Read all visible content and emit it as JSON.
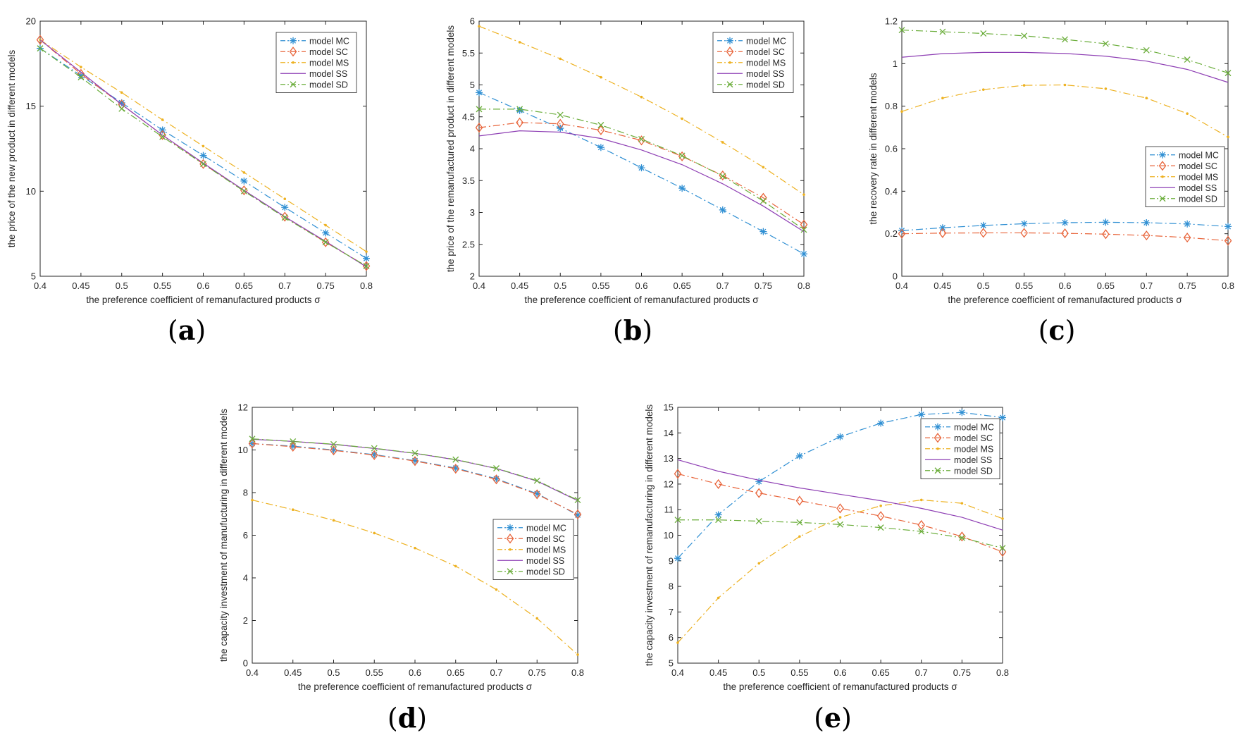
{
  "figure": {
    "panel_labels": [
      "(a)",
      "(b)",
      "(c)",
      "(d)",
      "(e)"
    ],
    "series_colors": {
      "model MC": "#2f8fd3",
      "model SC": "#e8643a",
      "model MS": "#edb120",
      "model SS": "#8e3fb4",
      "model SD": "#6aad3a"
    }
  },
  "chart_data": [
    {
      "type": "line",
      "panel": "(a)",
      "title": "",
      "xlabel": "the preference coefficient of remanufactured products σ",
      "ylabel": "the price of the new product in different models",
      "x": [
        0.4,
        0.45,
        0.5,
        0.55,
        0.6,
        0.65,
        0.7,
        0.75,
        0.8
      ],
      "x_tick_labels": [
        "0.4",
        "0.45",
        "0.5",
        "0.55",
        "0.6",
        "0.65",
        "0.7",
        "0.75",
        "0.8"
      ],
      "xlim": [
        0.4,
        0.8
      ],
      "ylim": [
        5,
        20
      ],
      "y_ticks": [
        5,
        10,
        15,
        20
      ],
      "legend": "top-right",
      "series": [
        {
          "name": "model MC",
          "values": [
            18.4,
            16.8,
            15.2,
            13.6,
            12.1,
            10.6,
            9.05,
            7.55,
            6.05
          ]
        },
        {
          "name": "model SC",
          "values": [
            18.9,
            16.9,
            15.1,
            13.3,
            11.6,
            10.05,
            8.5,
            7.0,
            5.6
          ]
        },
        {
          "name": "model MS",
          "values": [
            18.9,
            17.3,
            15.8,
            14.2,
            12.65,
            11.1,
            9.55,
            8.0,
            6.45
          ]
        },
        {
          "name": "model SS",
          "values": [
            18.9,
            17.0,
            15.1,
            13.3,
            11.65,
            10.05,
            8.5,
            7.05,
            5.55
          ]
        },
        {
          "name": "model SD",
          "values": [
            18.4,
            16.7,
            14.85,
            13.2,
            11.6,
            10.0,
            8.45,
            7.0,
            5.6
          ]
        }
      ]
    },
    {
      "type": "line",
      "panel": "(b)",
      "title": "",
      "xlabel": "the preference coefficient of remanufactured products σ",
      "ylabel": "the price of the remanufactured product in different models",
      "x": [
        0.4,
        0.45,
        0.5,
        0.55,
        0.6,
        0.65,
        0.7,
        0.75,
        0.8
      ],
      "x_tick_labels": [
        "0.4",
        "0.45",
        "0.5",
        "0.55",
        "0.6",
        "0.65",
        "0.7",
        "0.75",
        "0.8"
      ],
      "xlim": [
        0.4,
        0.8
      ],
      "ylim": [
        2,
        6
      ],
      "y_ticks": [
        2,
        2.5,
        3,
        3.5,
        4,
        4.5,
        5,
        5.5,
        6
      ],
      "legend": "top-right",
      "series": [
        {
          "name": "model MC",
          "values": [
            4.88,
            4.6,
            4.32,
            4.02,
            3.7,
            3.38,
            3.04,
            2.7,
            2.35
          ]
        },
        {
          "name": "model SC",
          "values": [
            4.33,
            4.41,
            4.39,
            4.29,
            4.13,
            3.88,
            3.58,
            3.23,
            2.81
          ]
        },
        {
          "name": "model MS",
          "values": [
            5.92,
            5.67,
            5.41,
            5.12,
            4.81,
            4.47,
            4.1,
            3.71,
            3.28
          ]
        },
        {
          "name": "model SS",
          "values": [
            4.2,
            4.28,
            4.26,
            4.16,
            3.98,
            3.75,
            3.45,
            3.1,
            2.7
          ]
        },
        {
          "name": "model SD",
          "values": [
            4.62,
            4.62,
            4.53,
            4.37,
            4.15,
            3.89,
            3.57,
            3.18,
            2.73
          ]
        }
      ]
    },
    {
      "type": "line",
      "panel": "(c)",
      "title": "",
      "xlabel": "the preference coefficient of remanufactured products σ",
      "ylabel": "the recovery rate in different models",
      "x": [
        0.4,
        0.45,
        0.5,
        0.55,
        0.6,
        0.65,
        0.7,
        0.75,
        0.8
      ],
      "x_tick_labels": [
        "0.4",
        "0.45",
        "0.5",
        "0.55",
        "0.6",
        "0.65",
        "0.7",
        "0.75",
        "0.8"
      ],
      "xlim": [
        0.4,
        0.8
      ],
      "ylim": [
        0,
        1.2
      ],
      "y_ticks": [
        0,
        0.2,
        0.4,
        0.6,
        0.8,
        1,
        1.2
      ],
      "legend": "right",
      "series": [
        {
          "name": "model MC",
          "values": [
            0.215,
            0.228,
            0.239,
            0.247,
            0.252,
            0.254,
            0.252,
            0.246,
            0.234
          ]
        },
        {
          "name": "model SC",
          "values": [
            0.2,
            0.203,
            0.204,
            0.204,
            0.202,
            0.198,
            0.192,
            0.182,
            0.167
          ]
        },
        {
          "name": "model MS",
          "values": [
            0.775,
            0.838,
            0.878,
            0.898,
            0.9,
            0.882,
            0.838,
            0.765,
            0.655
          ]
        },
        {
          "name": "model SS",
          "values": [
            1.03,
            1.047,
            1.053,
            1.053,
            1.048,
            1.035,
            1.012,
            0.973,
            0.912
          ]
        },
        {
          "name": "model SD",
          "values": [
            1.158,
            1.15,
            1.142,
            1.131,
            1.114,
            1.094,
            1.063,
            1.019,
            0.956
          ]
        }
      ]
    },
    {
      "type": "line",
      "panel": "(d)",
      "title": "",
      "xlabel": "the preference coefficient of remanufactured products σ",
      "ylabel": "the capacity investment of manufucturing in different models",
      "x": [
        0.4,
        0.45,
        0.5,
        0.55,
        0.6,
        0.65,
        0.7,
        0.75,
        0.8
      ],
      "x_tick_labels": [
        "0.4",
        "0.45",
        "0.5",
        "0.55",
        "0.6",
        "0.65",
        "0.7",
        "0.75",
        "0.8"
      ],
      "xlim": [
        0.4,
        0.8
      ],
      "ylim": [
        0,
        12
      ],
      "y_ticks": [
        0,
        2,
        4,
        6,
        8,
        10,
        12
      ],
      "legend": "bottom-right",
      "series": [
        {
          "name": "model MC",
          "values": [
            10.3,
            10.18,
            10.0,
            9.78,
            9.5,
            9.15,
            8.65,
            7.95,
            6.95
          ]
        },
        {
          "name": "model SC",
          "values": [
            10.3,
            10.15,
            9.98,
            9.76,
            9.48,
            9.12,
            8.62,
            7.92,
            6.98
          ]
        },
        {
          "name": "model MS",
          "values": [
            7.65,
            7.2,
            6.7,
            6.1,
            5.4,
            4.55,
            3.45,
            2.1,
            0.4
          ]
        },
        {
          "name": "model SS",
          "values": [
            10.5,
            10.4,
            10.26,
            10.07,
            9.84,
            9.54,
            9.13,
            8.54,
            7.62
          ]
        },
        {
          "name": "model SD",
          "values": [
            10.52,
            10.4,
            10.27,
            10.08,
            9.85,
            9.55,
            9.14,
            8.56,
            7.65
          ]
        }
      ]
    },
    {
      "type": "line",
      "panel": "(e)",
      "title": "",
      "xlabel": "the preference coefficient of remanufactured products σ",
      "ylabel": "the capacity investment of remanufacturing in different models",
      "x": [
        0.4,
        0.45,
        0.5,
        0.55,
        0.6,
        0.65,
        0.7,
        0.75,
        0.8
      ],
      "x_tick_labels": [
        "0.4",
        "0.45",
        "0.5",
        "0.55",
        "0.6",
        "0.65",
        "0.7",
        "0.75",
        "0.8"
      ],
      "xlim": [
        0.4,
        0.8
      ],
      "ylim": [
        5,
        15
      ],
      "y_ticks": [
        5,
        6,
        7,
        8,
        9,
        10,
        11,
        12,
        13,
        14,
        15
      ],
      "legend": "top-right",
      "series": [
        {
          "name": "model MC",
          "values": [
            9.1,
            10.8,
            12.1,
            13.1,
            13.85,
            14.38,
            14.72,
            14.8,
            14.6
          ]
        },
        {
          "name": "model SC",
          "values": [
            12.4,
            12.0,
            11.65,
            11.35,
            11.05,
            10.75,
            10.4,
            9.95,
            9.35
          ]
        },
        {
          "name": "model MS",
          "values": [
            5.8,
            7.55,
            8.9,
            9.95,
            10.7,
            11.15,
            11.38,
            11.25,
            10.65
          ]
        },
        {
          "name": "model SS",
          "values": [
            12.95,
            12.5,
            12.15,
            11.85,
            11.6,
            11.35,
            11.05,
            10.7,
            10.2
          ]
        },
        {
          "name": "model SD",
          "values": [
            10.6,
            10.6,
            10.55,
            10.5,
            10.42,
            10.3,
            10.15,
            9.9,
            9.5
          ]
        }
      ]
    }
  ]
}
